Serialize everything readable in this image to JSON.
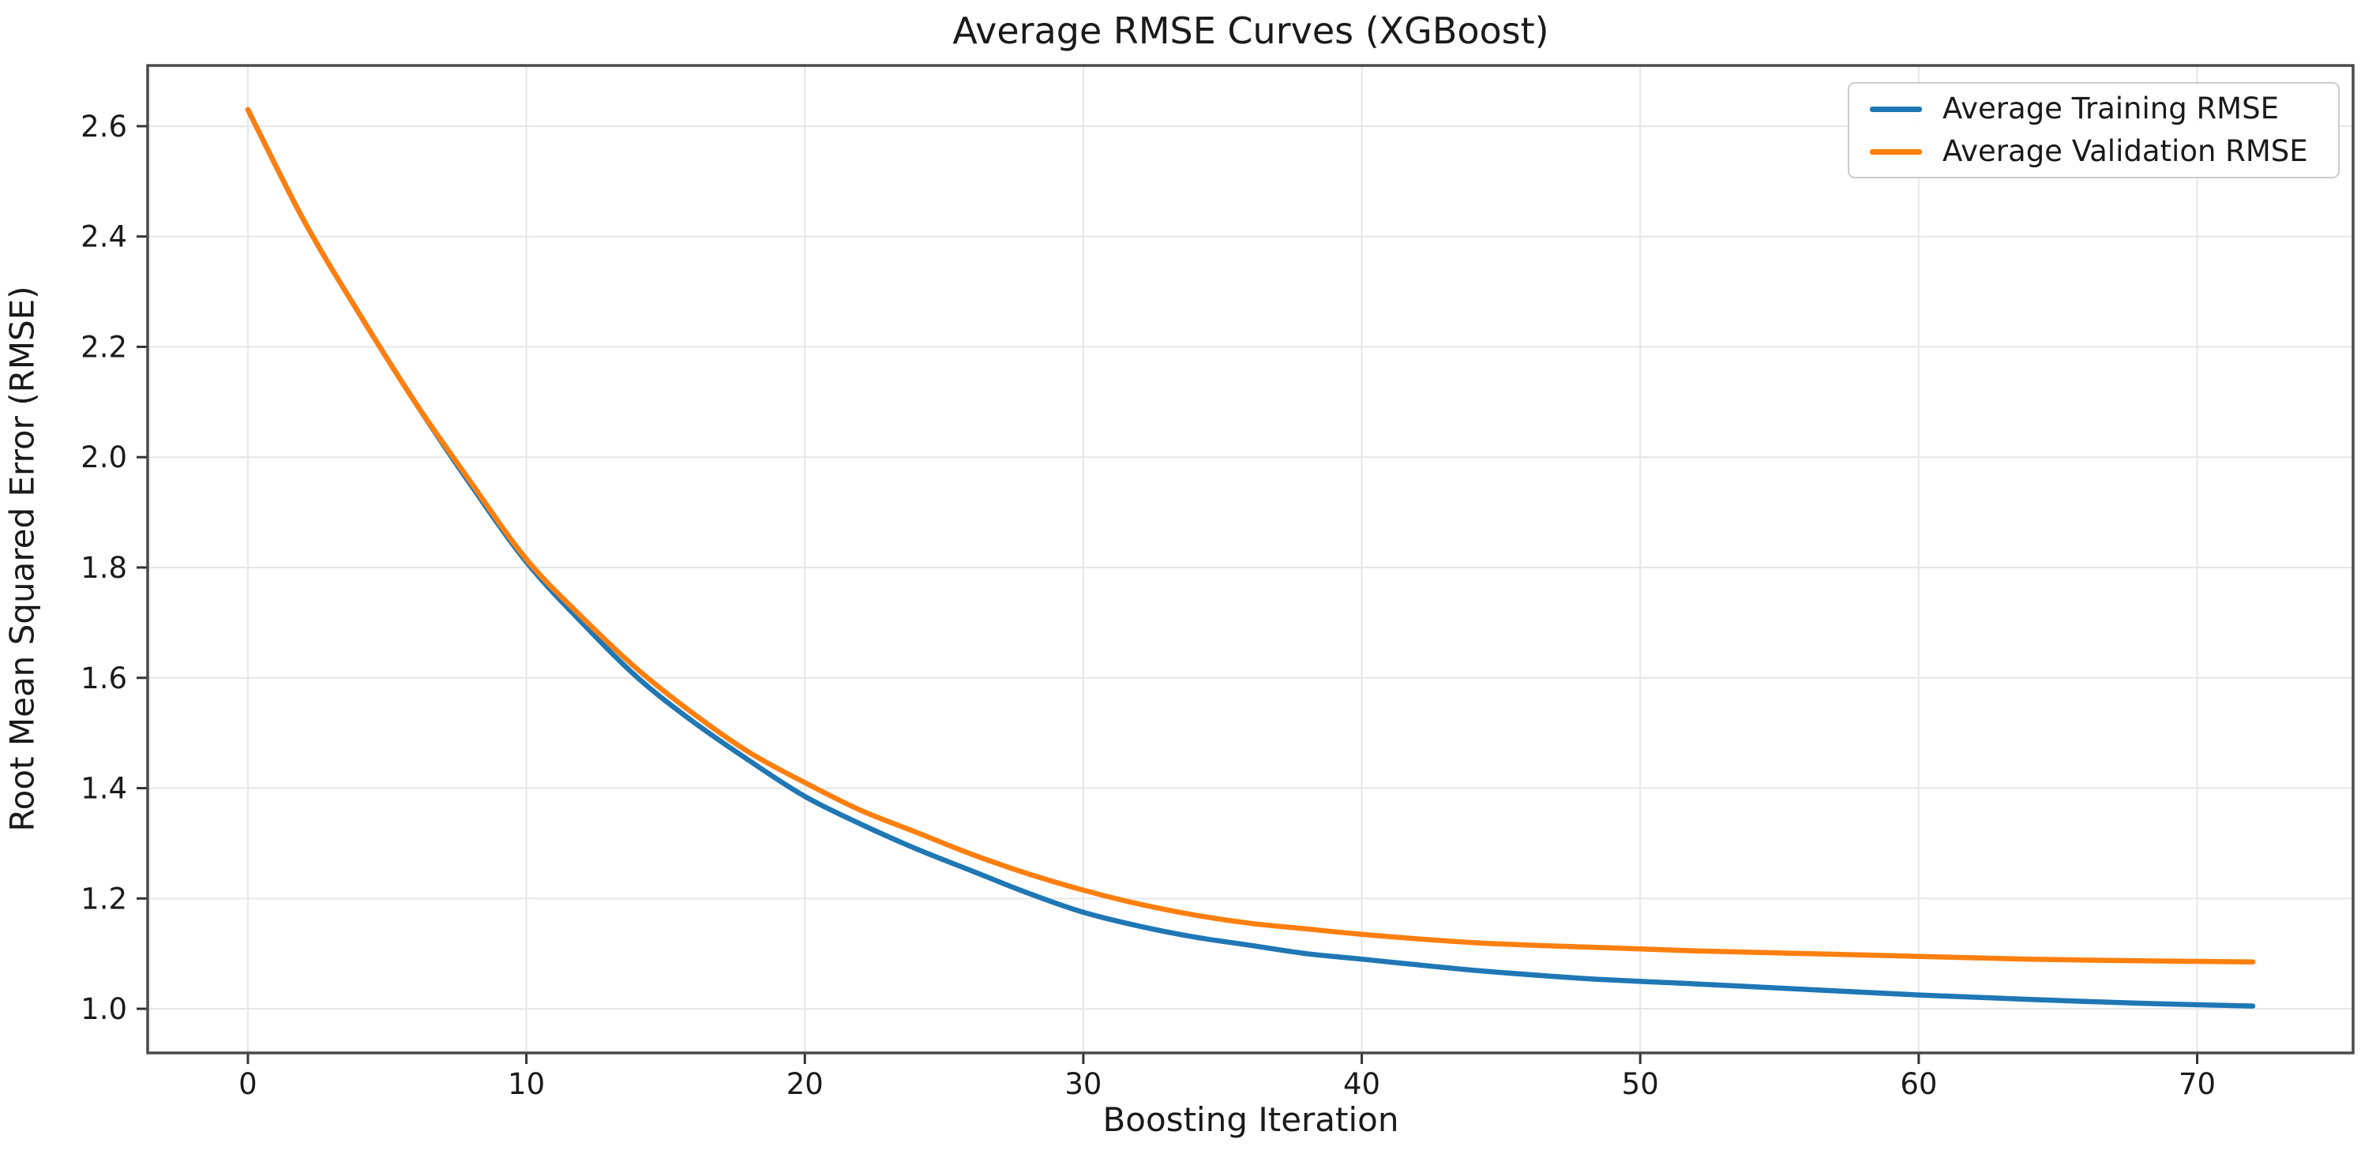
{
  "figure": {
    "title": "Average RMSE Curves (XGBoost)",
    "xlabel": "Boosting Iteration",
    "ylabel": "Root Mean Squared Error (RMSE)"
  },
  "chart_data": {
    "type": "line",
    "title": "Average RMSE Curves (XGBoost)",
    "xlabel": "Boosting Iteration",
    "ylabel": "Root Mean Squared Error (RMSE)",
    "xlim": [
      -3.6,
      75.6
    ],
    "ylim": [
      0.92,
      2.71
    ],
    "xticks": [
      0,
      10,
      20,
      30,
      40,
      50,
      60,
      70
    ],
    "xtick_labels": [
      "0",
      "10",
      "20",
      "30",
      "40",
      "50",
      "60",
      "70"
    ],
    "yticks": [
      1.0,
      1.2,
      1.4,
      1.6,
      1.8,
      2.0,
      2.2,
      2.4,
      2.6
    ],
    "ytick_labels": [
      "1.0",
      "1.2",
      "1.4",
      "1.6",
      "1.8",
      "2.0",
      "2.2",
      "2.4",
      "2.6"
    ],
    "grid": true,
    "legend_position": "upper right",
    "x": [
      0,
      2,
      4,
      6,
      8,
      10,
      12,
      14,
      16,
      18,
      20,
      22,
      24,
      26,
      28,
      30,
      32,
      34,
      36,
      38,
      40,
      44,
      48,
      52,
      56,
      60,
      64,
      68,
      72
    ],
    "series": [
      {
        "name": "Average Training RMSE",
        "color": "#1f77b4",
        "values": [
          2.63,
          2.43,
          2.26,
          2.1,
          1.95,
          1.81,
          1.7,
          1.6,
          1.52,
          1.45,
          1.385,
          1.335,
          1.29,
          1.25,
          1.21,
          1.175,
          1.15,
          1.13,
          1.115,
          1.1,
          1.09,
          1.07,
          1.055,
          1.045,
          1.035,
          1.025,
          1.017,
          1.01,
          1.005
        ]
      },
      {
        "name": "Average Validation RMSE",
        "color": "#ff7f0e",
        "values": [
          2.63,
          2.43,
          2.26,
          2.1,
          1.955,
          1.815,
          1.71,
          1.615,
          1.535,
          1.465,
          1.41,
          1.36,
          1.32,
          1.28,
          1.245,
          1.215,
          1.19,
          1.17,
          1.155,
          1.145,
          1.135,
          1.12,
          1.112,
          1.105,
          1.1,
          1.095,
          1.09,
          1.087,
          1.085
        ]
      }
    ],
    "styles": {
      "grid_color": "#e6e6e6",
      "spine_color": "#4a4a4a",
      "tick_color": "#333333",
      "background": "#ffffff"
    }
  }
}
